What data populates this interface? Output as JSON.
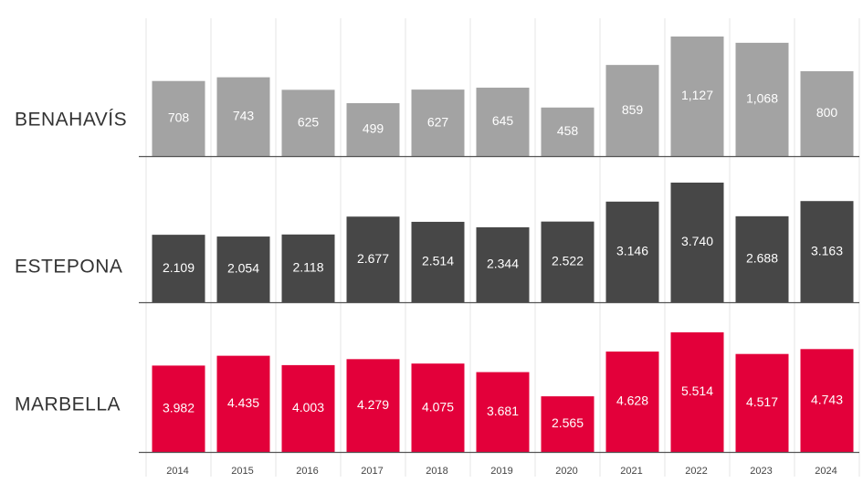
{
  "chart_data": {
    "type": "bar",
    "categories": [
      "2014",
      "2015",
      "2016",
      "2017",
      "2018",
      "2019",
      "2020",
      "2021",
      "2022",
      "2023",
      "2024"
    ],
    "series": [
      {
        "name": "BENAHAVÍS",
        "color": "#a3a3a3",
        "values": [
          708,
          743,
          625,
          499,
          627,
          645,
          458,
          859,
          1127,
          1068,
          800
        ],
        "labels": [
          "708",
          "743",
          "625",
          "499",
          "627",
          "645",
          "458",
          "859",
          "1,127",
          "1,068",
          "800"
        ]
      },
      {
        "name": "ESTEPONA",
        "color": "#474747",
        "values": [
          2109,
          2054,
          2118,
          2677,
          2514,
          2344,
          2522,
          3146,
          3740,
          2688,
          3163
        ],
        "labels": [
          "2.109",
          "2.054",
          "2.118",
          "2.677",
          "2.514",
          "2.344",
          "2.522",
          "3.146",
          "3.740",
          "2.688",
          "3.163"
        ]
      },
      {
        "name": "MARBELLA",
        "color": "#e3003a",
        "values": [
          3982,
          4435,
          4003,
          4279,
          4075,
          3681,
          2565,
          4628,
          5514,
          4517,
          4743
        ],
        "labels": [
          "3.982",
          "4.435",
          "4.003",
          "4.279",
          "4.075",
          "3.681",
          "2.565",
          "4.628",
          "5.514",
          "4.517",
          "4.743"
        ]
      }
    ],
    "grid": true,
    "legend": "none"
  }
}
